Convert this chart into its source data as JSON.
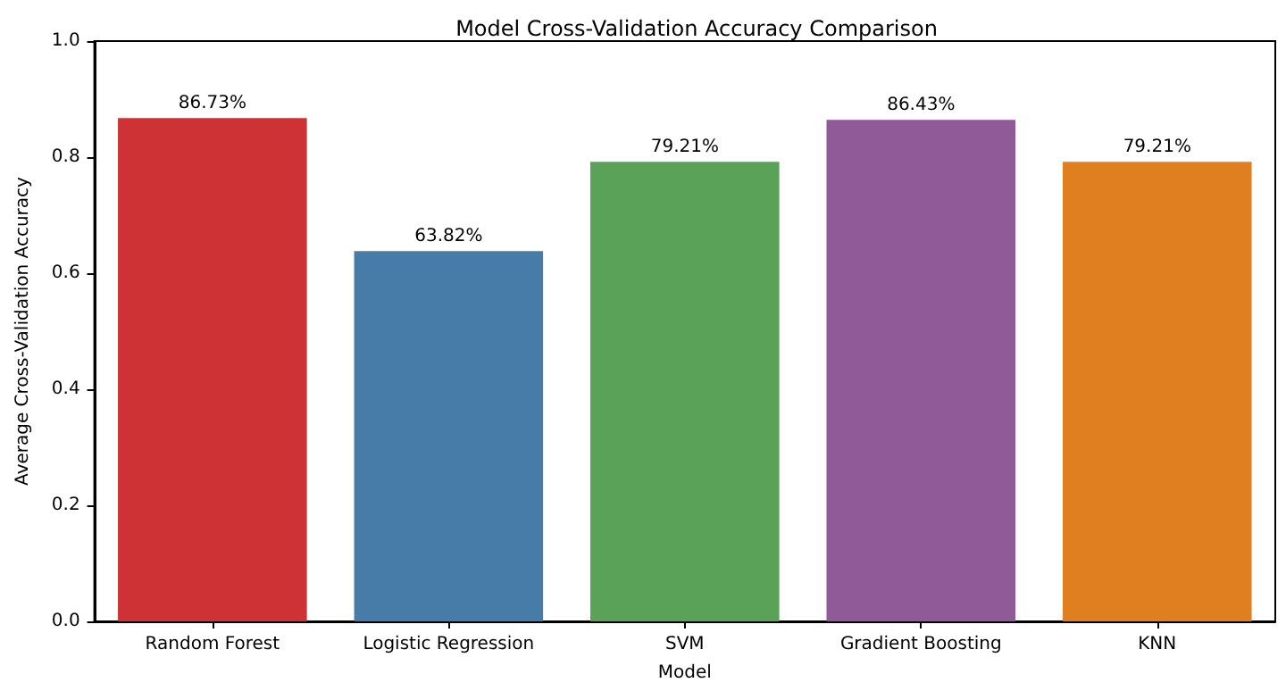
{
  "chart_data": {
    "type": "bar",
    "title": "Model Cross-Validation Accuracy Comparison",
    "xlabel": "Model",
    "ylabel": "Average Cross-Validation Accuracy",
    "categories": [
      "Random Forest",
      "Logistic Regression",
      "SVM",
      "Gradient Boosting",
      "KNN"
    ],
    "values": [
      0.8673,
      0.6382,
      0.7921,
      0.8643,
      0.7921
    ],
    "colors": [
      "#cf3234",
      "#477ca8",
      "#59a257",
      "#905998",
      "#e07f20"
    ],
    "value_labels": [
      "86.73%",
      "63.82%",
      "79.21%",
      "86.43%",
      "79.21%"
    ],
    "ylim": [
      0,
      1
    ],
    "yticks": [
      {
        "value": 0,
        "label": "0.0"
      },
      0.2,
      0.4,
      0.6,
      0.8,
      {
        "value": 1,
        "label": "1.0"
      }
    ],
    "grid": false
  }
}
